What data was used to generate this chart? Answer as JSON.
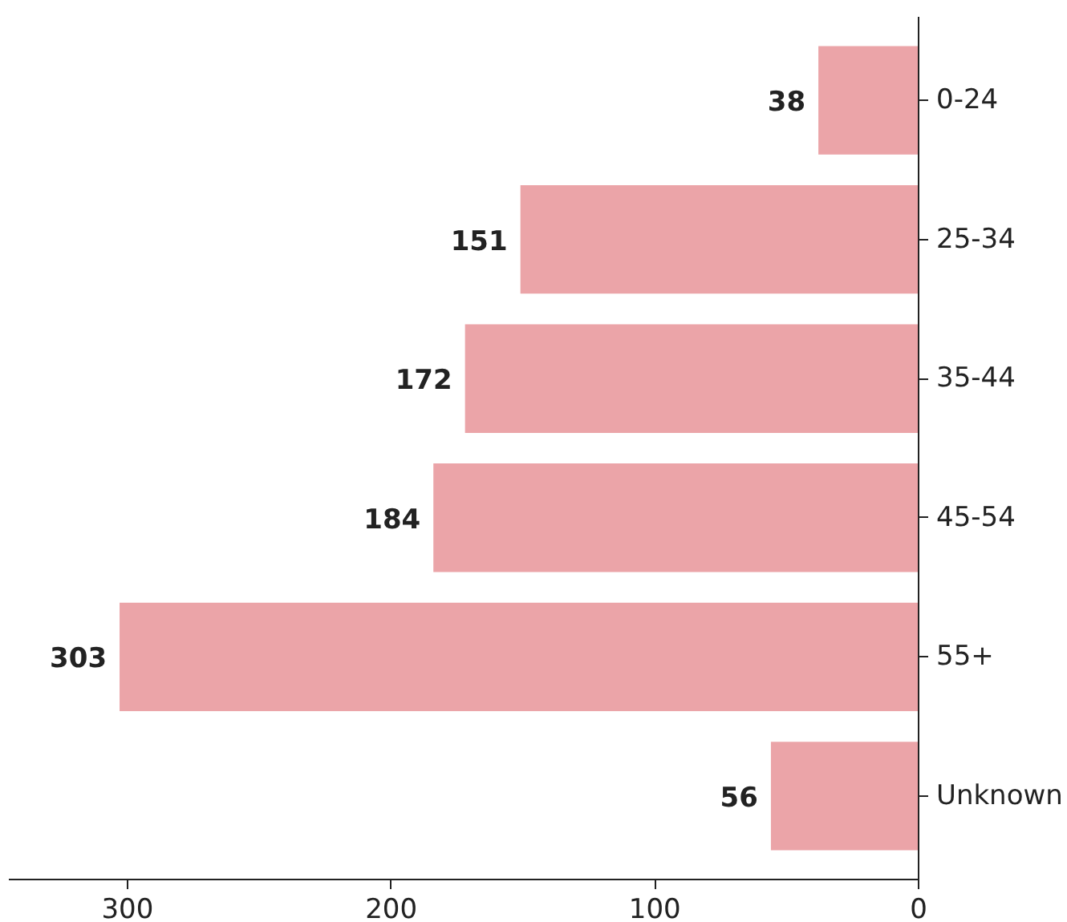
{
  "chart_data": {
    "type": "bar",
    "orientation": "horizontal",
    "categories": [
      "0-24",
      "25-34",
      "35-44",
      "45-54",
      "55+",
      "Unknown"
    ],
    "values": [
      38,
      151,
      172,
      184,
      303,
      56
    ],
    "color": "#eba4a8",
    "xlim": [
      345,
      0
    ],
    "xticks": [
      300,
      200,
      100,
      0
    ],
    "data_labels": true
  }
}
